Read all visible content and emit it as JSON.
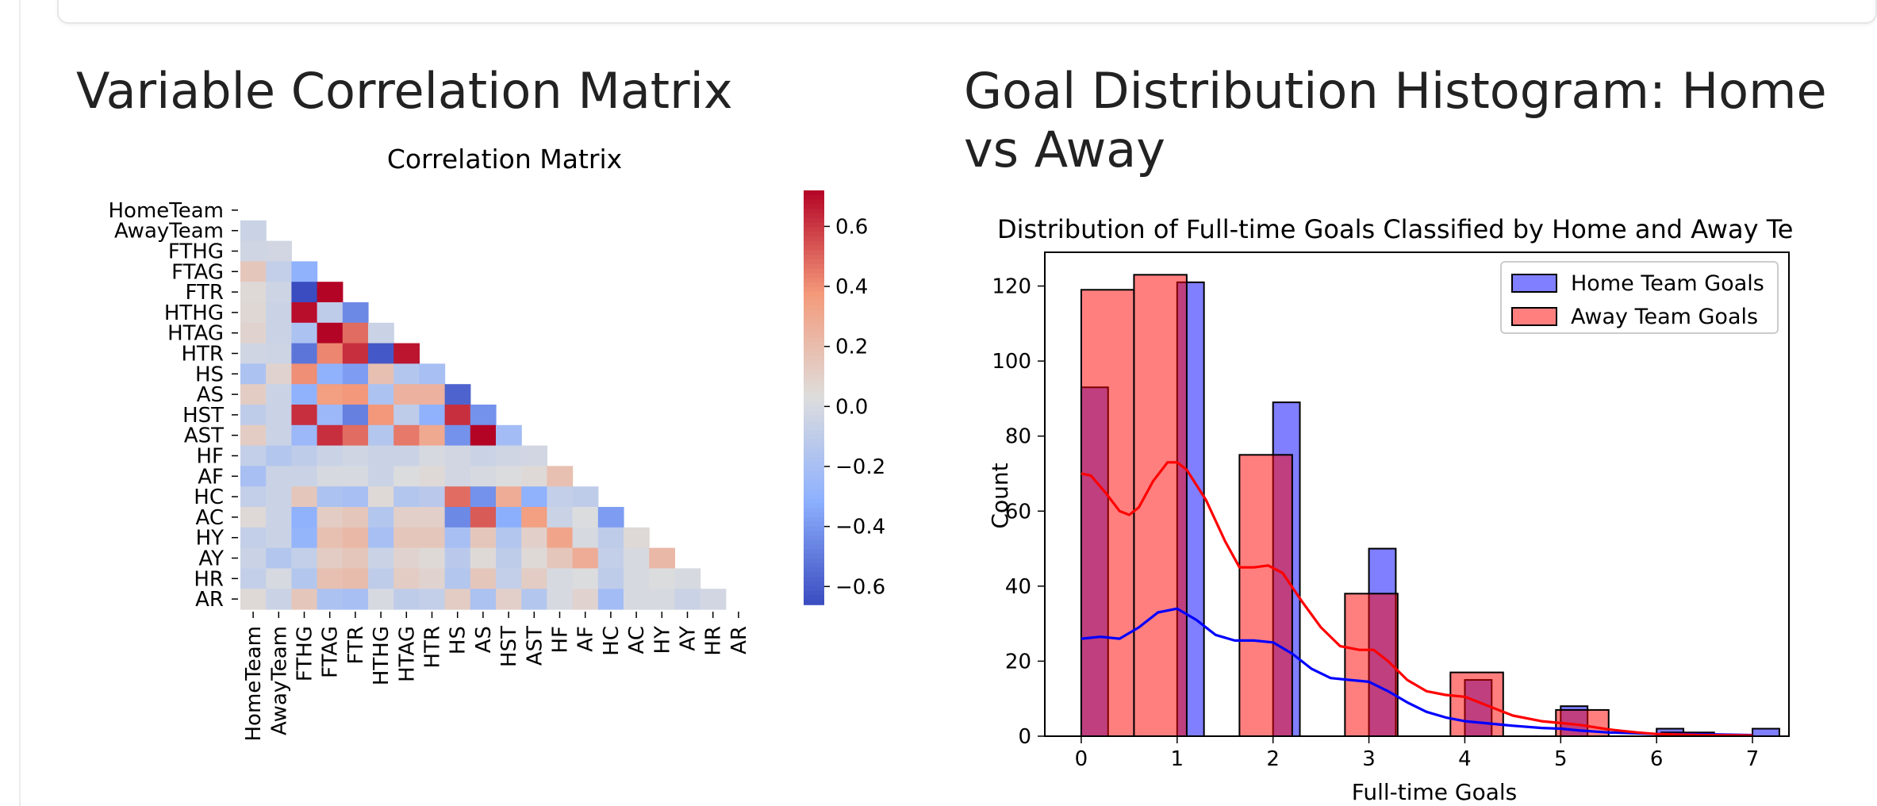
{
  "sections": {
    "heatmap_heading": "Variable Correlation Matrix",
    "histogram_heading": "Goal Distribution Histogram: Home vs Away"
  },
  "chart_data": [
    {
      "type": "heatmap",
      "title": "Correlation Matrix",
      "variables": [
        "HomeTeam",
        "AwayTeam",
        "FTHG",
        "FTAG",
        "FTR",
        "HTHG",
        "HTAG",
        "HTR",
        "HS",
        "AS",
        "HST",
        "AST",
        "HF",
        "AF",
        "HC",
        "AC",
        "HY",
        "AY",
        "HR",
        "AR"
      ],
      "mask": "upper-triangle-including-diagonal",
      "colormap": "coolwarm",
      "colorbar": {
        "min": -0.66,
        "max": 0.72,
        "ticks": [
          -0.6,
          -0.4,
          -0.2,
          0.0,
          0.2,
          0.4,
          0.6
        ],
        "tick_labels": [
          "−0.6",
          "−0.4",
          "−0.2",
          "0.0",
          "0.2",
          "0.4",
          "0.6"
        ]
      },
      "lower_triangle": [
        [],
        [
          -0.05
        ],
        [
          -0.03,
          -0.02
        ],
        [
          0.15,
          -0.08,
          -0.3
        ],
        [
          0.05,
          -0.04,
          -0.68,
          0.72
        ],
        [
          0.06,
          -0.05,
          0.7,
          -0.1,
          -0.45
        ],
        [
          0.08,
          -0.05,
          -0.18,
          0.72,
          0.48,
          -0.05
        ],
        [
          -0.03,
          -0.04,
          -0.52,
          0.42,
          0.62,
          -0.62,
          0.68
        ],
        [
          -0.18,
          0.08,
          0.4,
          -0.3,
          -0.38,
          0.18,
          -0.15,
          -0.2
        ],
        [
          0.12,
          -0.05,
          -0.3,
          0.35,
          0.38,
          -0.18,
          0.25,
          0.25,
          -0.58
        ],
        [
          -0.1,
          -0.05,
          0.62,
          -0.25,
          -0.48,
          0.38,
          -0.1,
          -0.3,
          0.62,
          -0.42
        ],
        [
          0.12,
          -0.05,
          -0.25,
          0.62,
          0.48,
          -0.15,
          0.45,
          0.3,
          -0.42,
          0.72,
          -0.22
        ],
        [
          -0.08,
          -0.15,
          -0.1,
          -0.05,
          -0.03,
          -0.05,
          -0.05,
          0.0,
          -0.02,
          -0.05,
          -0.03,
          -0.02
        ],
        [
          -0.2,
          -0.05,
          -0.05,
          0.0,
          0.0,
          -0.05,
          0.02,
          0.05,
          -0.02,
          0.0,
          0.02,
          0.05,
          0.18
        ],
        [
          -0.08,
          -0.05,
          0.15,
          -0.18,
          -0.2,
          0.05,
          -0.15,
          -0.12,
          0.48,
          -0.42,
          0.28,
          -0.3,
          -0.08,
          -0.1
        ],
        [
          0.05,
          -0.05,
          -0.3,
          0.12,
          0.15,
          -0.15,
          0.1,
          0.1,
          -0.45,
          0.52,
          -0.32,
          0.35,
          -0.05,
          0.02,
          -0.38
        ],
        [
          -0.08,
          -0.05,
          -0.28,
          0.18,
          0.22,
          -0.2,
          0.15,
          0.15,
          -0.2,
          0.15,
          -0.15,
          0.1,
          0.32,
          0.0,
          -0.1,
          0.05
        ],
        [
          -0.05,
          -0.15,
          -0.08,
          0.12,
          0.15,
          -0.05,
          0.08,
          0.05,
          -0.12,
          0.05,
          -0.1,
          0.05,
          0.15,
          0.28,
          -0.08,
          0.0,
          0.22
        ],
        [
          -0.08,
          0.0,
          -0.15,
          0.18,
          0.2,
          -0.1,
          0.12,
          0.08,
          -0.15,
          0.15,
          -0.08,
          0.12,
          0.0,
          0.02,
          -0.1,
          0.0,
          0.02,
          0.0
        ],
        [
          0.05,
          -0.05,
          0.15,
          -0.18,
          -0.2,
          0.0,
          -0.1,
          -0.08,
          0.12,
          -0.18,
          0.1,
          -0.15,
          0.0,
          0.08,
          -0.22,
          0.0,
          0.0,
          -0.05,
          -0.02
        ]
      ]
    },
    {
      "type": "histogram",
      "title": "Distribution of Full-time Goals Classified by Home and Away Te",
      "xlabel": "Full-time Goals",
      "ylabel": "Count",
      "xlim": [
        -0.38,
        7.38
      ],
      "ylim": [
        0,
        129
      ],
      "xticks": [
        0,
        1,
        2,
        3,
        4,
        5,
        6,
        7
      ],
      "yticks": [
        0,
        20,
        40,
        60,
        80,
        100,
        120
      ],
      "legend_position": "top-right",
      "series": [
        {
          "name": "Home Team Goals",
          "color": "#0000ff",
          "bin_width": 0.28,
          "bins": [
            {
              "x": 0,
              "count": 93
            },
            {
              "x": 1,
              "count": 121
            },
            {
              "x": 2,
              "count": 89
            },
            {
              "x": 3,
              "count": 50
            },
            {
              "x": 4,
              "count": 15
            },
            {
              "x": 5,
              "count": 8
            },
            {
              "x": 6,
              "count": 2
            },
            {
              "x": 7,
              "count": 2
            }
          ],
          "kde": [
            [
              0,
              26
            ],
            [
              0.2,
              26.5
            ],
            [
              0.4,
              26
            ],
            [
              0.6,
              29
            ],
            [
              0.8,
              33
            ],
            [
              1.0,
              34
            ],
            [
              1.2,
              31
            ],
            [
              1.4,
              27
            ],
            [
              1.6,
              25.5
            ],
            [
              1.8,
              25.5
            ],
            [
              2.0,
              25
            ],
            [
              2.2,
              22
            ],
            [
              2.4,
              18
            ],
            [
              2.6,
              15.5
            ],
            [
              2.8,
              15
            ],
            [
              3.0,
              14.5
            ],
            [
              3.2,
              12
            ],
            [
              3.4,
              9
            ],
            [
              3.6,
              6.5
            ],
            [
              3.8,
              5
            ],
            [
              4.0,
              4
            ],
            [
              4.2,
              3.5
            ],
            [
              4.5,
              2.8
            ],
            [
              4.8,
              2.2
            ],
            [
              5.0,
              2
            ],
            [
              5.2,
              1.5
            ],
            [
              5.5,
              1
            ],
            [
              6.0,
              0.6
            ],
            [
              6.5,
              0.5
            ],
            [
              7.0,
              0.3
            ]
          ]
        },
        {
          "name": "Away Team Goals",
          "color": "#ff0000",
          "bin_width": 0.55,
          "bins": [
            {
              "x": 0,
              "count": 119
            },
            {
              "x": 0.55,
              "count": 123
            },
            {
              "x": 1.65,
              "count": 75
            },
            {
              "x": 2.75,
              "count": 38
            },
            {
              "x": 3.85,
              "count": 17
            },
            {
              "x": 4.95,
              "count": 7
            },
            {
              "x": 6.05,
              "count": 1
            },
            {
              "x": 6.6,
              "count": 0
            }
          ],
          "kde": [
            [
              0,
              70
            ],
            [
              0.1,
              69.5
            ],
            [
              0.25,
              65
            ],
            [
              0.4,
              60
            ],
            [
              0.5,
              59
            ],
            [
              0.6,
              61
            ],
            [
              0.75,
              68
            ],
            [
              0.9,
              73
            ],
            [
              1.0,
              73
            ],
            [
              1.1,
              71
            ],
            [
              1.3,
              63
            ],
            [
              1.5,
              52
            ],
            [
              1.65,
              45
            ],
            [
              1.8,
              45
            ],
            [
              1.95,
              45.5
            ],
            [
              2.1,
              43.5
            ],
            [
              2.3,
              36
            ],
            [
              2.5,
              29
            ],
            [
              2.7,
              24
            ],
            [
              2.9,
              23
            ],
            [
              3.05,
              23
            ],
            [
              3.2,
              20
            ],
            [
              3.4,
              15
            ],
            [
              3.6,
              12
            ],
            [
              3.8,
              11
            ],
            [
              4.0,
              10.5
            ],
            [
              4.2,
              8.5
            ],
            [
              4.5,
              5.5
            ],
            [
              4.8,
              4
            ],
            [
              5.0,
              3.5
            ],
            [
              5.2,
              3
            ],
            [
              5.5,
              1.8
            ],
            [
              5.8,
              1
            ],
            [
              6.0,
              0.6
            ],
            [
              6.5,
              0.3
            ],
            [
              7.0,
              0.2
            ]
          ]
        }
      ]
    }
  ]
}
